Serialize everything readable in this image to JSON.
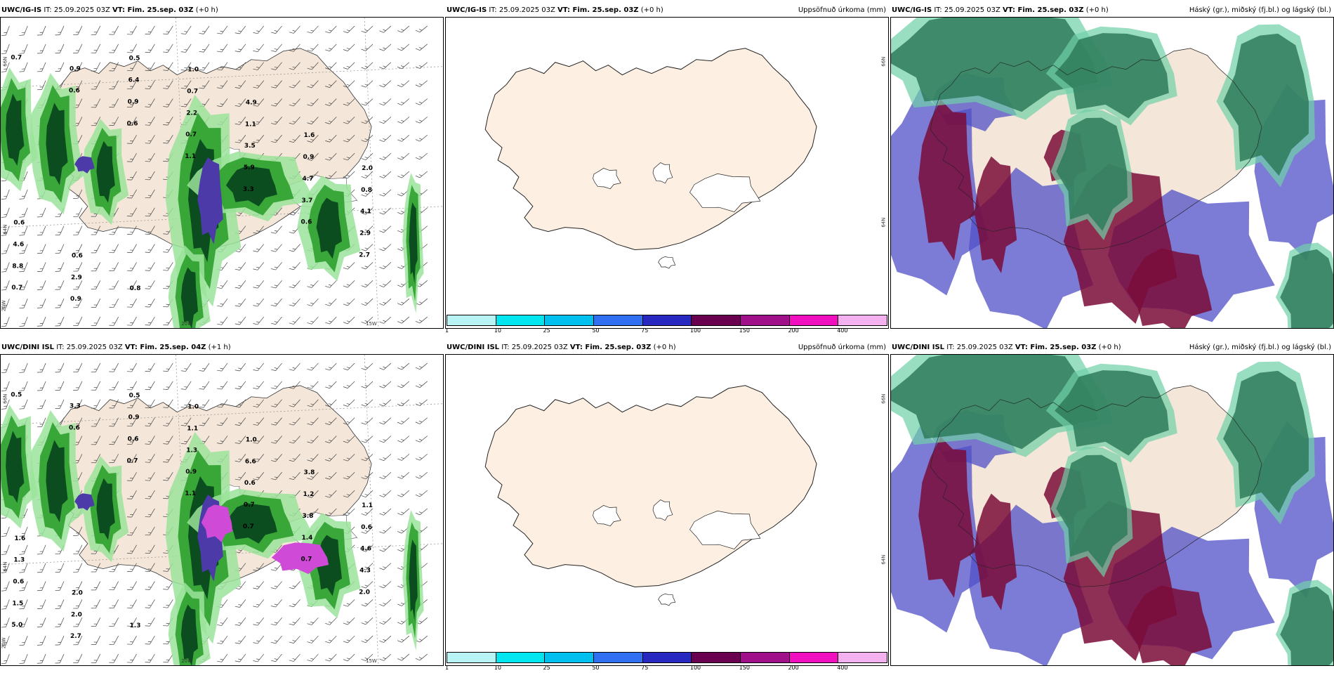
{
  "panels": [
    {
      "id": "top-left",
      "title_bold": "UWC/IG-IS",
      "title_it": " IT: 25.09.2025 03Z ",
      "title_vt_bold": "VT: Fim. 25.sep. 03Z",
      "title_lead": " (+0 h)",
      "right_title": "",
      "type": "wind-precip",
      "axis_labels": [
        "66N",
        "64N",
        "20W",
        "20W",
        "15W"
      ],
      "value_labels": [
        "0.7",
        "0.6",
        "0.6",
        "1.1",
        "3.3",
        "0.6",
        "2.7",
        "0.7",
        "0.9",
        "0.9",
        "0.7",
        "5.9",
        "3.7",
        "2.9",
        "8.8",
        "0.9",
        "6.4",
        "2.2",
        "3.5",
        "4.7",
        "4.1",
        "4.6",
        "2.9",
        "0.5",
        "0.7",
        "1.1",
        "0.9",
        "0.8",
        "0.6",
        "0.6",
        "0.8",
        "1.0",
        "4.9",
        "1.6",
        "2.0"
      ]
    },
    {
      "id": "top-mid",
      "title_bold": "UWC/IG-IS",
      "title_it": " IT: 25.09.2025 03Z ",
      "title_vt_bold": "VT: Fim. 25.sep. 03Z",
      "title_lead": " (+0 h)",
      "right_title": "Uppsöfnuð úrkoma (mm)",
      "type": "accum",
      "axis_labels": [
        "66N",
        "64N"
      ]
    },
    {
      "id": "top-right",
      "title_bold": "UWC/IG-IS",
      "title_it": " IT: 25.09.2025 03Z ",
      "title_vt_bold": "VT: Fim. 25.sep. 03Z",
      "title_lead": " (+0 h)",
      "right_title": "Háský (gr.), miðský (fj.bl.) og lágský (bl.)",
      "type": "clouds"
    },
    {
      "id": "bottom-left",
      "title_bold": "UWC/DINI ISL",
      "title_it": " IT: 25.09.2025 03Z ",
      "title_vt_bold": "VT: Fim. 25.sep. 04Z",
      "title_lead": " (+1 h)",
      "right_title": "",
      "type": "wind-precip",
      "axis_labels": [
        "66N",
        "64N",
        "20W",
        "20W",
        "15W"
      ],
      "value_labels": [
        "0.5",
        "0.6",
        "0.7",
        "1.1",
        "0.7",
        "0.7",
        "2.0",
        "5.0",
        "3.3",
        "0.6",
        "0.9",
        "0.7",
        "1.4",
        "4.3",
        "1.5",
        "2.7",
        "0.9",
        "1.3",
        "0.6",
        "3.8",
        "4.6",
        "0.6",
        "2.0",
        "0.5",
        "1.1",
        "6.6",
        "1.2",
        "0.6",
        "1.3",
        "2.0",
        "1.3",
        "1.0",
        "1.0",
        "3.8",
        "1.1",
        "1.6"
      ]
    },
    {
      "id": "bottom-mid",
      "title_bold": "UWC/DINI ISL",
      "title_it": " IT: 25.09.2025 03Z ",
      "title_vt_bold": "VT: Fim. 25.sep. 03Z",
      "title_lead": " (+0 h)",
      "right_title": "Uppsöfnuð úrkoma (mm)",
      "type": "accum",
      "axis_labels": [
        "66N",
        "64N"
      ]
    },
    {
      "id": "bottom-right",
      "title_bold": "UWC/DINI ISL",
      "title_it": " IT: 25.09.2025 03Z ",
      "title_vt_bold": "VT: Fim. 25.sep. 03Z",
      "title_lead": " (+0 h)",
      "right_title": "Háský (gr.), miðský (fj.bl.) og lágský (bl.)",
      "type": "clouds"
    }
  ],
  "legend": {
    "colors": [
      "#b8f4f4",
      "#00e5ee",
      "#00c0f0",
      "#3070f0",
      "#2828c0",
      "#6a0050",
      "#a0108a",
      "#f010c0",
      "#f5b0f0"
    ],
    "ticks": [
      "1",
      "10",
      "25",
      "50",
      "75",
      "100",
      "150",
      "200",
      "400"
    ]
  },
  "colors": {
    "land": "#f4e6d8",
    "land_accum": "#fdf0e2",
    "precip_light": "#9be39b",
    "precip_mid": "#2ca02c",
    "precip_dark": "#0b4d1f",
    "precip_blue": "#4b3aa8",
    "precip_magenta": "#d04ad8",
    "cloud_high": "#2e7b5a",
    "cloud_high_light": "#6fd0a8",
    "cloud_mid": "#7a0c38",
    "cloud_low": "#5050c8"
  }
}
